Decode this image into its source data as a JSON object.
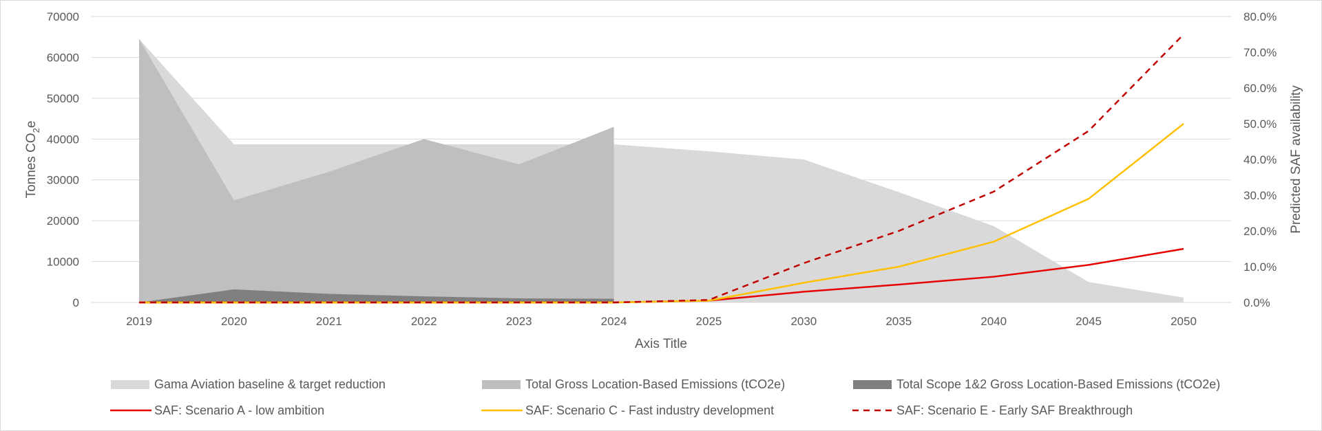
{
  "chart_data": {
    "type": "area",
    "categories": [
      "2019",
      "2020",
      "2021",
      "2022",
      "2023",
      "2024",
      "2025",
      "2030",
      "2035",
      "2040",
      "2045",
      "2050"
    ],
    "xlabel": "Axis Title",
    "ylabel_left": {
      "main": "Tonnes  CO",
      "sub": "2",
      "end": "e"
    },
    "ylabel_right": "Predicted SAF availability",
    "y_left": {
      "min": 0,
      "max": 70000,
      "ticks": [
        "0",
        "10000",
        "20000",
        "30000",
        "40000",
        "50000",
        "60000",
        "70000"
      ]
    },
    "y_right": {
      "min": 0,
      "max": 0.8,
      "ticks": [
        "0.0%",
        "10.0%",
        "20.0%",
        "30.0%",
        "40.0%",
        "50.0%",
        "60.0%",
        "70.0%",
        "80.0%"
      ]
    },
    "grid": true,
    "legend_position": "bottom",
    "series": [
      {
        "name": "Gama Aviation baseline & target reduction",
        "kind": "area",
        "axis": "left",
        "color": "#d9d9d9",
        "values": [
          64500,
          38700,
          38700,
          38700,
          38700,
          38700,
          37000,
          35000,
          27000,
          18700,
          5000,
          1200
        ]
      },
      {
        "name": "Total Gross Location-Based Emissions (tCO2e)",
        "kind": "area",
        "axis": "left",
        "color": "#bfbfbf",
        "values": [
          64500,
          25000,
          32000,
          40000,
          33800,
          43000,
          null,
          null,
          null,
          null,
          null,
          null
        ]
      },
      {
        "name": "Total Scope 1&2 Gross Location-Based Emissions (tCO2e)",
        "kind": "area",
        "axis": "left",
        "color": "#7f7f7f",
        "values": [
          0,
          3200,
          2100,
          1500,
          1000,
          900,
          null,
          null,
          null,
          null,
          null,
          null
        ]
      },
      {
        "name": "SAF: Scenario A - low ambition",
        "kind": "line",
        "axis": "right",
        "color": "#e60000",
        "dash": false,
        "values": [
          0,
          0,
          0,
          0,
          0,
          0,
          0.005,
          0.03,
          0.05,
          0.072,
          0.105,
          0.15
        ]
      },
      {
        "name": "SAF: Scenario C - Fast industry development",
        "kind": "line",
        "axis": "right",
        "color": "#ffc000",
        "dash": false,
        "values": [
          0,
          0,
          0,
          0,
          0,
          0,
          0.005,
          0.055,
          0.1,
          0.17,
          0.29,
          0.5
        ]
      },
      {
        "name": "SAF: Scenario E - Early SAF Breakthrough",
        "kind": "line",
        "axis": "right",
        "color": "#c00000",
        "dash": true,
        "values": [
          0,
          0,
          0,
          0,
          0,
          0,
          0.007,
          0.11,
          0.2,
          0.31,
          0.48,
          0.75
        ]
      }
    ]
  }
}
